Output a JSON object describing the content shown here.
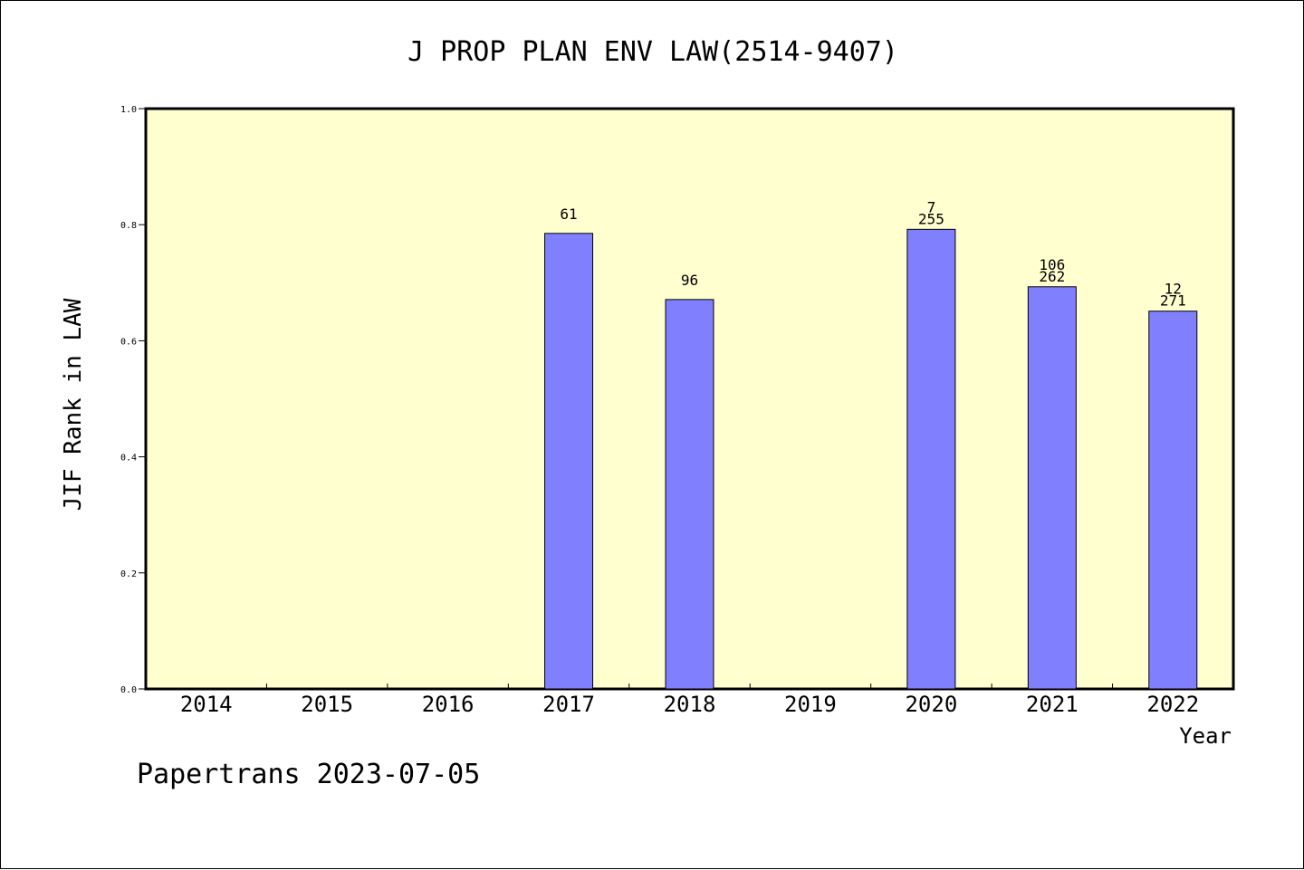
{
  "chart_data": {
    "type": "bar",
    "title": "J PROP PLAN ENV LAW(2514-9407)",
    "xlabel": "Year",
    "ylabel": "JIF Rank in LAW",
    "ylim": [
      0,
      1
    ],
    "yticks": [
      "0.0",
      "0.2",
      "0.4",
      "0.6",
      "0.8",
      "1.0"
    ],
    "categories": [
      "2014",
      "2015",
      "2016",
      "2017",
      "2018",
      "2019",
      "2020",
      "2021",
      "2022"
    ],
    "values": [
      null,
      null,
      null,
      0.785,
      0.671,
      null,
      0.792,
      0.693,
      0.651
    ],
    "labels": [
      [],
      [],
      [],
      [
        "61"
      ],
      [
        "96"
      ],
      [],
      [
        "7",
        "255"
      ],
      [
        "106",
        "262"
      ],
      [
        "12",
        "271"
      ]
    ],
    "grid": false,
    "colors": {
      "plot_background": "#ffffd0",
      "bar_fill": "#8080ff",
      "bar_edge": "#000000"
    }
  },
  "footer": "Papertrans 2023-07-05"
}
